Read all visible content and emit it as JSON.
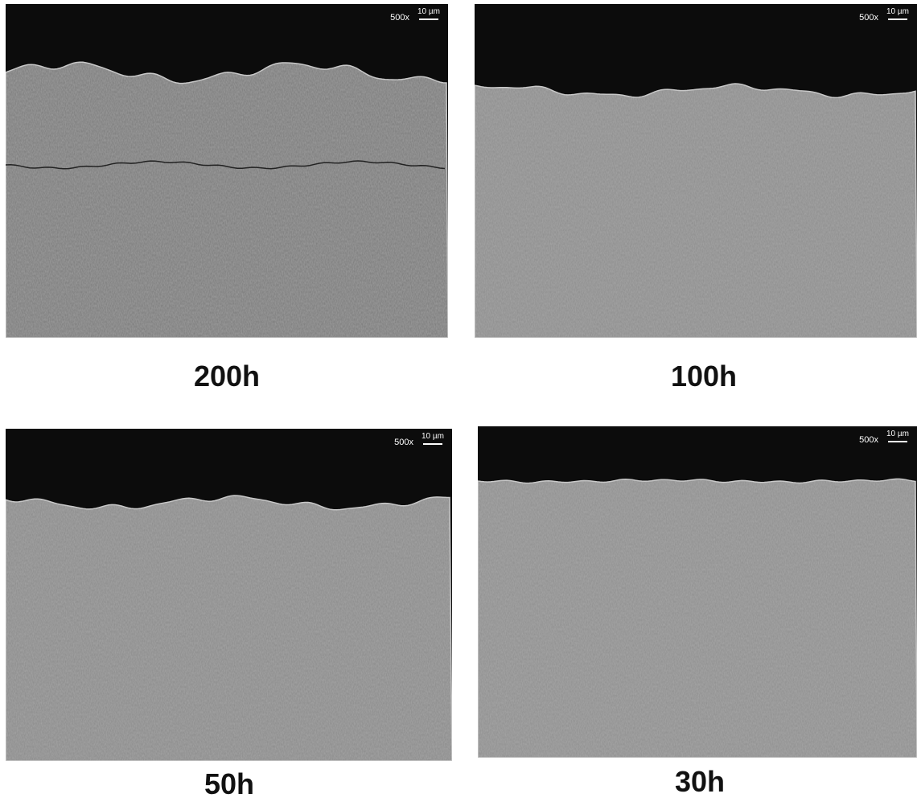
{
  "panels": [
    {
      "label": "200h",
      "magnification": "500x",
      "scale": "10 µm"
    },
    {
      "label": "100h",
      "magnification": "500x",
      "scale": "10 µm"
    },
    {
      "label": "50h",
      "magnification": "500x",
      "scale": "10 µm"
    },
    {
      "label": "30h",
      "magnification": "500x",
      "scale": "10 µm"
    }
  ]
}
